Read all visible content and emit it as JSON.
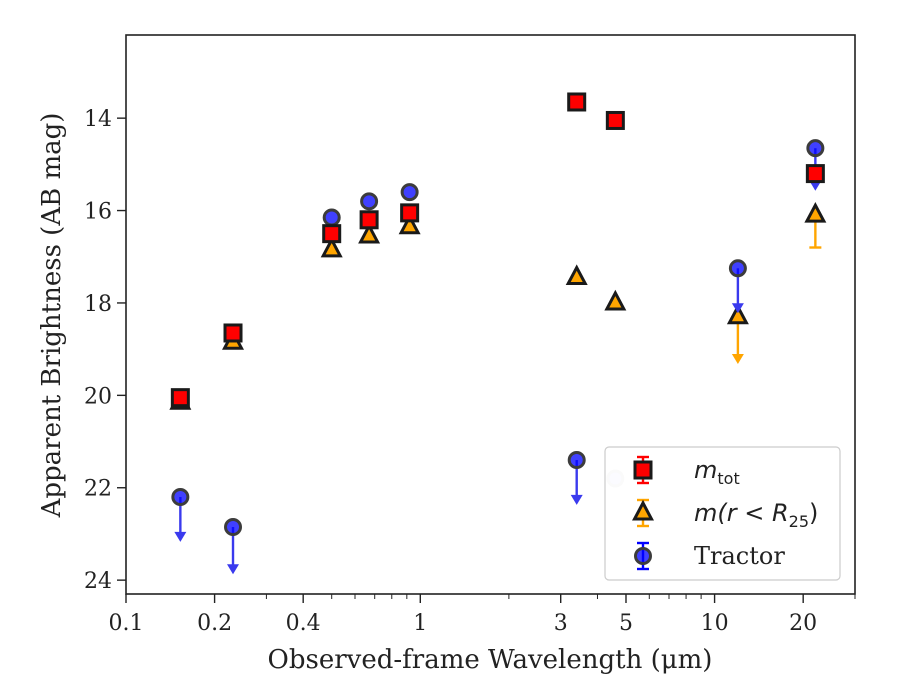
{
  "chart_data": {
    "type": "scatter",
    "title": "",
    "xlabel": "Observed-frame Wavelength (μm)",
    "ylabel": "Apparent Brightness (AB mag)",
    "x_scale": "log",
    "xlim": [
      0.1,
      30
    ],
    "ylim": [
      24.3,
      12.2
    ],
    "y_inverted": true,
    "x_ticks": [
      {
        "value": 0.1,
        "label": "0.1"
      },
      {
        "value": 0.2,
        "label": "0.2"
      },
      {
        "value": 0.4,
        "label": "0.4"
      },
      {
        "value": 1,
        "label": "1"
      },
      {
        "value": 3,
        "label": "3"
      },
      {
        "value": 5,
        "label": "5"
      },
      {
        "value": 10,
        "label": "10"
      },
      {
        "value": 20,
        "label": "20"
      }
    ],
    "y_ticks": [
      {
        "value": 14,
        "label": "14"
      },
      {
        "value": 16,
        "label": "16"
      },
      {
        "value": 18,
        "label": "18"
      },
      {
        "value": 20,
        "label": "20"
      },
      {
        "value": 22,
        "label": "22"
      },
      {
        "value": 24,
        "label": "24"
      }
    ],
    "grid": false,
    "legend_position": "bottom-right",
    "series": [
      {
        "name": "m_tot",
        "legend_main": "m",
        "legend_sub": "tot",
        "marker": "square",
        "color": "#ff0000",
        "edge": "#1a1a1a",
        "points": [
          {
            "x": 0.153,
            "y": 20.05
          },
          {
            "x": 0.231,
            "y": 18.65
          },
          {
            "x": 0.5,
            "y": 16.5
          },
          {
            "x": 0.67,
            "y": 16.2
          },
          {
            "x": 0.92,
            "y": 16.05
          },
          {
            "x": 3.4,
            "y": 13.65
          },
          {
            "x": 4.6,
            "y": 14.05
          },
          {
            "x": 22,
            "y": 15.2
          }
        ]
      },
      {
        "name": "m(r<R_25)",
        "legend_main": "m(r < R",
        "legend_sub": "25",
        "legend_close": ")",
        "marker": "triangle",
        "color": "#ffa500",
        "edge": "#1a1a1a",
        "points": [
          {
            "x": 0.153,
            "y": 20.15
          },
          {
            "x": 0.231,
            "y": 18.85
          },
          {
            "x": 0.5,
            "y": 16.85
          },
          {
            "x": 0.67,
            "y": 16.55
          },
          {
            "x": 0.92,
            "y": 16.35
          },
          {
            "x": 3.4,
            "y": 17.45
          },
          {
            "x": 4.6,
            "y": 18.0
          },
          {
            "x": 12,
            "y": 18.3,
            "upper_limit": true,
            "arrow_to": 19.3
          },
          {
            "x": 22,
            "y": 16.1,
            "err_low": 16.1,
            "err_high": 16.8
          }
        ]
      },
      {
        "name": "Tractor",
        "legend_main": "Tractor",
        "marker": "circle",
        "color": "#0000ff",
        "edge": "#3c3c3c",
        "points": [
          {
            "x": 0.153,
            "y": 22.2,
            "upper_limit": true,
            "arrow_to": 23.15
          },
          {
            "x": 0.231,
            "y": 22.85,
            "upper_limit": true,
            "arrow_to": 23.85
          },
          {
            "x": 0.5,
            "y": 16.15
          },
          {
            "x": 0.67,
            "y": 15.8
          },
          {
            "x": 0.92,
            "y": 15.6
          },
          {
            "x": 3.4,
            "y": 21.4,
            "upper_limit": true,
            "arrow_to": 22.35
          },
          {
            "x": 4.6,
            "y": 21.8,
            "faded": true
          },
          {
            "x": 12,
            "y": 17.25,
            "upper_limit": true,
            "arrow_to": 18.2
          },
          {
            "x": 22,
            "y": 14.65,
            "upper_limit": true,
            "arrow_to": 15.55
          }
        ]
      }
    ]
  }
}
